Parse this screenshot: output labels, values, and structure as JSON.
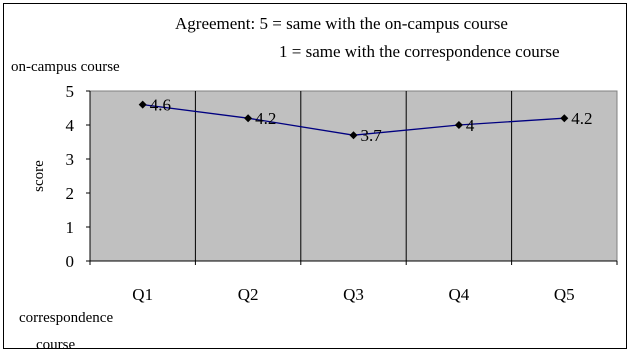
{
  "chart_data": {
    "type": "line",
    "title_lines": [
      "Agreement: 5 = same with the on-campus course",
      "1 = same with the correspondence course"
    ],
    "top_axis_note": "on-campus course",
    "bottom_axis_note_lines": [
      "correspondence",
      "course"
    ],
    "xlabel": "",
    "ylabel": "score",
    "categories": [
      "Q1",
      "Q2",
      "Q3",
      "Q4",
      "Q5"
    ],
    "values": [
      4.6,
      4.2,
      3.7,
      4,
      4.2
    ],
    "data_labels": [
      "4.6",
      "4.2",
      "3.7",
      "4",
      "4.2"
    ],
    "ylim": [
      0,
      5
    ],
    "yticks": [
      "0",
      "1",
      "2",
      "3",
      "4",
      "5"
    ],
    "grid": true,
    "legend": "none",
    "colors": {
      "plot_background": "#c0c0c0",
      "line": "#000080",
      "marker": "#000000",
      "gridline": "#000000"
    }
  }
}
